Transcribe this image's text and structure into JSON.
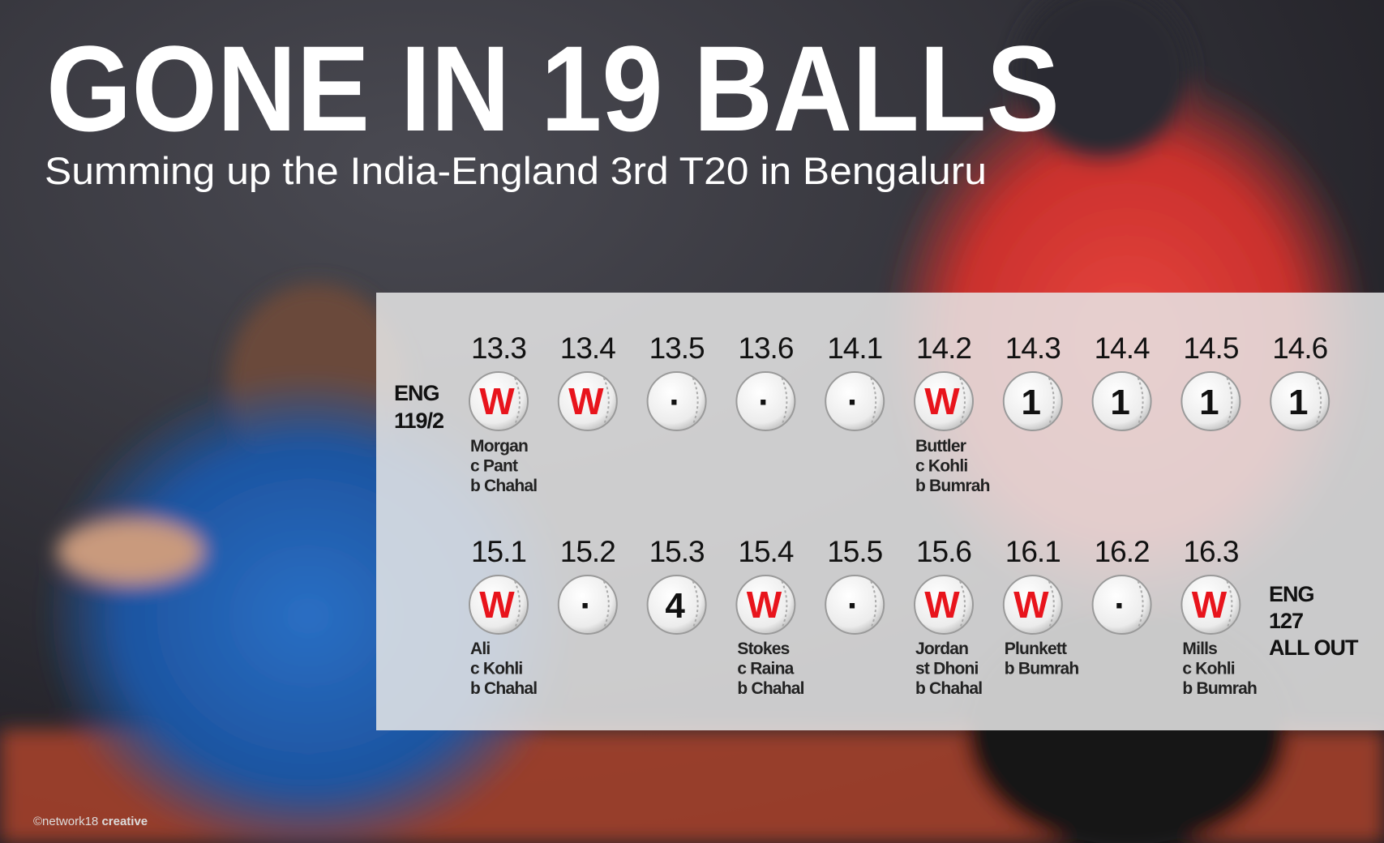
{
  "title": "GONE IN 19 BALLS",
  "subtitle": "Summing up the India-England 3rd T20 in Bengaluru",
  "start_score": {
    "team": "ENG",
    "score": "119/2"
  },
  "rows": [
    {
      "balls": [
        {
          "over": "13.3",
          "result": "W",
          "dismissal": [
            "Morgan",
            "c Pant",
            "b Chahal"
          ]
        },
        {
          "over": "13.4",
          "result": "W"
        },
        {
          "over": "13.5",
          "result": "·"
        },
        {
          "over": "13.6",
          "result": "·"
        },
        {
          "over": "14.1",
          "result": "·"
        },
        {
          "over": "14.2",
          "result": "W",
          "dismissal": [
            "Buttler",
            "c Kohli",
            "b Bumrah"
          ]
        },
        {
          "over": "14.3",
          "result": "1"
        },
        {
          "over": "14.4",
          "result": "1"
        },
        {
          "over": "14.5",
          "result": "1"
        },
        {
          "over": "14.6",
          "result": "1"
        }
      ]
    },
    {
      "balls": [
        {
          "over": "15.1",
          "result": "W",
          "dismissal": [
            "Ali",
            "c Kohli",
            "b Chahal"
          ]
        },
        {
          "over": "15.2",
          "result": "·"
        },
        {
          "over": "15.3",
          "result": "4"
        },
        {
          "over": "15.4",
          "result": "W",
          "dismissal": [
            "Stokes",
            "c Raina",
            "b Chahal"
          ]
        },
        {
          "over": "15.5",
          "result": "·"
        },
        {
          "over": "15.6",
          "result": "W",
          "dismissal": [
            "Jordan",
            "st Dhoni",
            "b Chahal"
          ]
        },
        {
          "over": "16.1",
          "result": "W",
          "dismissal": [
            "Plunkett",
            "b Bumrah"
          ]
        },
        {
          "over": "16.2",
          "result": "·"
        },
        {
          "over": "16.3",
          "result": "W",
          "dismissal": [
            "Mills",
            "c Kohli",
            "b Bumrah"
          ]
        }
      ]
    }
  ],
  "end_score": {
    "team": "ENG",
    "score": "127",
    "status": "ALL OUT"
  },
  "credit": {
    "brand": "©network18",
    "label": "creative"
  }
}
